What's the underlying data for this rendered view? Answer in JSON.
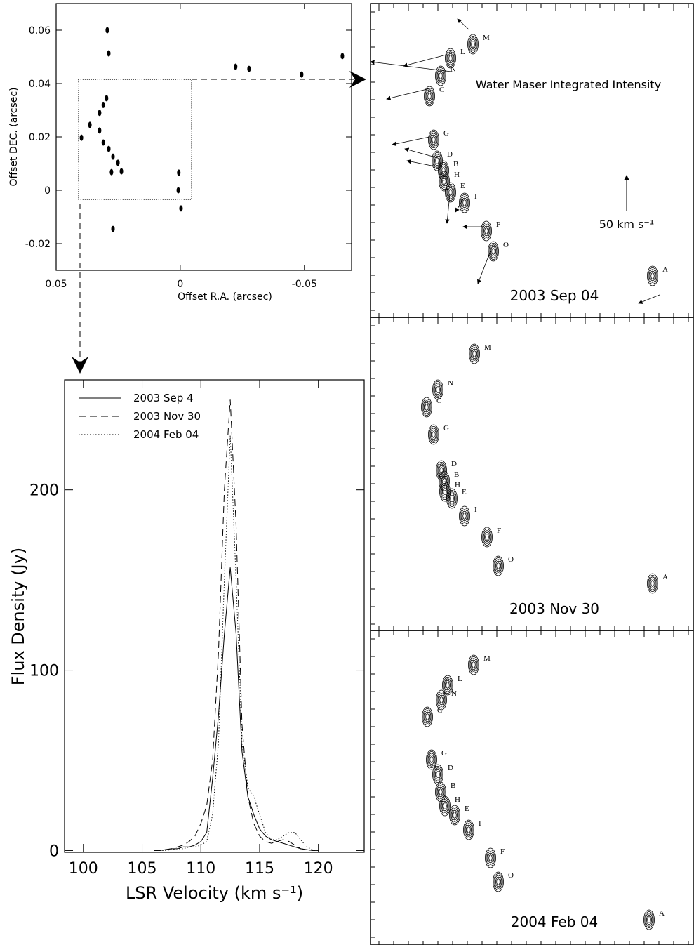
{
  "chart_data": [
    {
      "type": "scatter",
      "xlabel": "Offset R.A. (arcsec)",
      "ylabel": "Offset DEC. (arcsec)",
      "x": [
        0.0297,
        0.031,
        0.0325,
        0.0364,
        0.0325,
        0.031,
        0.0288,
        0.0271,
        0.0251,
        0.0237,
        0.0277,
        0.0008,
        0.0006,
        -0.0003,
        0.0271,
        0.0294,
        0.0288,
        -0.0223,
        -0.0277,
        -0.0489,
        -0.0653,
        0.0398
      ],
      "y": [
        0.0345,
        0.032,
        0.029,
        0.0245,
        0.0224,
        0.0179,
        0.0155,
        0.0126,
        0.0103,
        0.0071,
        0.0068,
        0,
        0.0066,
        -0.0068,
        -0.0145,
        0.06,
        0.0513,
        0.0463,
        0.0455,
        0.0434,
        0.0503,
        0.0197
      ],
      "region": {
        "x": [
          0.041,
          -0.0045
        ],
        "y": [
          -0.0035,
          0.0415
        ]
      },
      "xlim": [
        0.05,
        -0.069
      ],
      "ylim": [
        -0.03,
        0.07
      ],
      "xticks": [
        0.05,
        0,
        -0.05
      ],
      "yticks": [
        -0.02,
        0,
        0.02,
        0.04,
        0.06
      ],
      "color": "#000000"
    },
    {
      "type": "line",
      "xlabel": "LSR Velocity (km s⁻¹)",
      "ylabel": "Flux Density (Jy)",
      "x": [
        106,
        106.5,
        107,
        107.5,
        108,
        108.5,
        109,
        109.5,
        110,
        110.5,
        111,
        111.5,
        112,
        112.5,
        113,
        113.5,
        114,
        114.5,
        115,
        115.5,
        116,
        116.5,
        117,
        117.5,
        118,
        118.5,
        119,
        119.5,
        120
      ],
      "series": [
        {
          "name": "2003 Sep 4",
          "color": "#000000",
          "style": "solid",
          "values": [
            0,
            0,
            0.5,
            1,
            1,
            2,
            2,
            3,
            5,
            10,
            40,
            75,
            120,
            157,
            120,
            55,
            30,
            20,
            12,
            8,
            6,
            5,
            4,
            3,
            2,
            1,
            0.5,
            0,
            0
          ]
        },
        {
          "name": "2003 Nov 30",
          "color": "#000000",
          "style": "dashed",
          "values": [
            0,
            0,
            0.5,
            1,
            2,
            3,
            5,
            8,
            15,
            25,
            50,
            110,
            200,
            250,
            180,
            70,
            30,
            15,
            8,
            5,
            4,
            5,
            6,
            5,
            3,
            1,
            0.5,
            0,
            0
          ]
        },
        {
          "name": "2004 Feb 04",
          "color": "#000000",
          "style": "dotted",
          "values": [
            0,
            0,
            0,
            0.5,
            1,
            1,
            2,
            2,
            3,
            5,
            20,
            60,
            150,
            230,
            150,
            60,
            35,
            30,
            20,
            10,
            6,
            6,
            8,
            10,
            10,
            6,
            2,
            0.5,
            0
          ]
        }
      ],
      "xlim": [
        98.4,
        123.9
      ],
      "ylim": [
        -1,
        261
      ],
      "xticks": [
        100,
        105,
        110,
        115,
        120
      ],
      "yticks": [
        0,
        100,
        200
      ]
    },
    {
      "type": "contour",
      "title": "Water Maser Integrated Intensity",
      "scale_label": "50 km s⁻¹",
      "date": "2003 Sep 04",
      "labels": [
        "M",
        "L",
        "N",
        "C",
        "G",
        "D",
        "B",
        "H",
        "E",
        "I",
        "F",
        "O",
        "A"
      ]
    },
    {
      "type": "contour",
      "date": "2003 Nov 30",
      "labels": [
        "M",
        "N",
        "C",
        "G",
        "D",
        "B",
        "H",
        "E",
        "I",
        "F",
        "O",
        "A"
      ]
    },
    {
      "type": "contour",
      "date": "2004 Feb 04",
      "labels": [
        "M",
        "L",
        "N",
        "C",
        "G",
        "D",
        "B",
        "H",
        "E",
        "I",
        "F",
        "O",
        "A"
      ]
    }
  ]
}
